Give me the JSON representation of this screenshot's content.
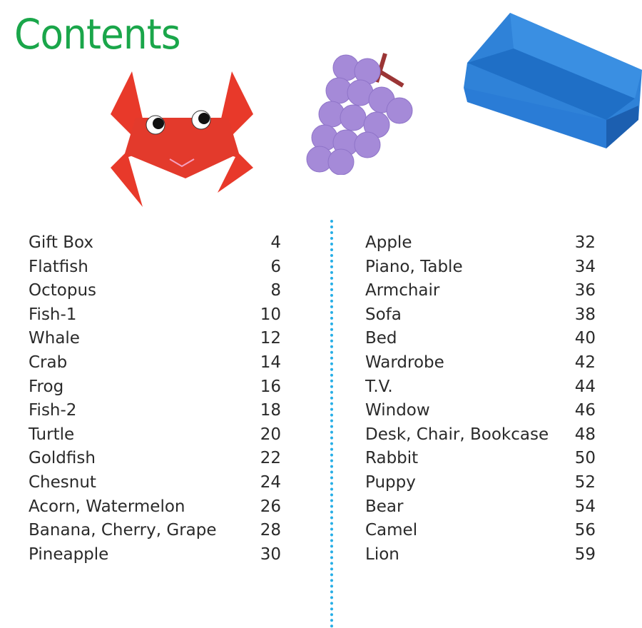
{
  "title": "Contents",
  "colors": {
    "title": "#1aa64a",
    "divider": "#27aee6"
  },
  "images": [
    "origami-crab",
    "origami-grape",
    "origami-sofa"
  ],
  "left_entries": [
    {
      "name": "Gift Box",
      "page": "4"
    },
    {
      "name": "Flatfish",
      "page": "6"
    },
    {
      "name": "Octopus",
      "page": "8"
    },
    {
      "name": "Fish-1",
      "page": "10"
    },
    {
      "name": "Whale",
      "page": "12"
    },
    {
      "name": "Crab",
      "page": "14"
    },
    {
      "name": "Frog",
      "page": "16"
    },
    {
      "name": "Fish-2",
      "page": "18"
    },
    {
      "name": "Turtle",
      "page": "20"
    },
    {
      "name": "Goldfish",
      "page": "22"
    },
    {
      "name": "Chesnut",
      "page": "24"
    },
    {
      "name": "Acorn, Watermelon",
      "page": "26"
    },
    {
      "name": "Banana, Cherry, Grape",
      "page": "28"
    },
    {
      "name": "Pineapple",
      "page": "30"
    }
  ],
  "right_entries": [
    {
      "name": "Apple",
      "page": "32"
    },
    {
      "name": "Piano, Table",
      "page": "34"
    },
    {
      "name": "Armchair",
      "page": "36"
    },
    {
      "name": "Sofa",
      "page": "38"
    },
    {
      "name": "Bed",
      "page": "40"
    },
    {
      "name": "Wardrobe",
      "page": "42"
    },
    {
      "name": "T.V.",
      "page": "44"
    },
    {
      "name": "Window",
      "page": "46"
    },
    {
      "name": "Desk, Chair, Bookcase",
      "page": "48"
    },
    {
      "name": "Rabbit",
      "page": "50"
    },
    {
      "name": "Puppy",
      "page": "52"
    },
    {
      "name": "Bear",
      "page": "54"
    },
    {
      "name": "Camel",
      "page": "56"
    },
    {
      "name": "Lion",
      "page": "59"
    }
  ]
}
